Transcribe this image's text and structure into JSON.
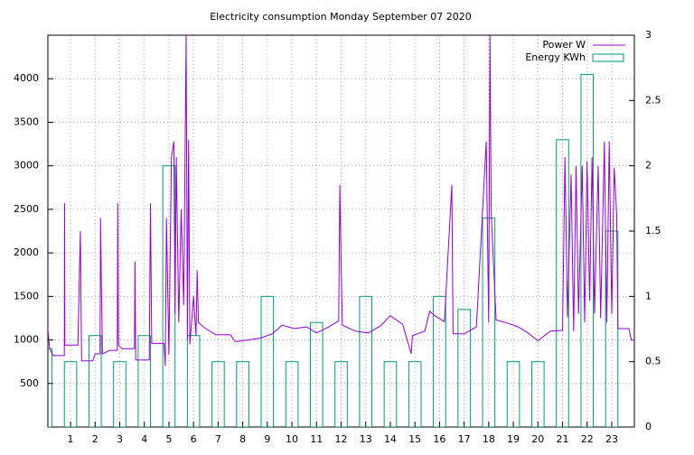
{
  "chart_data": {
    "type": "line-bar",
    "title": "Electricity consumption Monday September 07 2020",
    "xlim": [
      0.08,
      23.92
    ],
    "xticks": [
      1,
      2,
      3,
      4,
      5,
      6,
      7,
      8,
      9,
      10,
      11,
      12,
      13,
      14,
      15,
      16,
      17,
      18,
      19,
      20,
      21,
      22,
      23
    ],
    "ylim": [
      0,
      4500
    ],
    "yticks": [
      500,
      1000,
      1500,
      2000,
      2500,
      3000,
      3500,
      4000
    ],
    "y2lim": [
      0,
      3
    ],
    "y2ticks": [
      0,
      0.5,
      1,
      1.5,
      2,
      2.5,
      3
    ],
    "grid": true,
    "legend": "top-right",
    "series": [
      {
        "name": "Power W",
        "color": "#9400d3",
        "type": "line",
        "x": [
          0.08,
          0.15,
          0.3,
          0.75,
          0.76,
          0.77,
          1.3,
          1.4,
          1.45,
          1.9,
          2.0,
          2.2,
          2.22,
          2.25,
          2.3,
          2.6,
          2.9,
          2.92,
          2.95,
          3.1,
          3.6,
          3.62,
          3.65,
          4.2,
          4.25,
          4.3,
          4.8,
          4.85,
          4.9,
          5.0,
          5.1,
          5.2,
          5.25,
          5.3,
          5.4,
          5.5,
          5.6,
          5.7,
          5.75,
          5.8,
          5.85,
          6.0,
          6.1,
          6.15,
          6.2,
          6.5,
          6.9,
          7.5,
          7.7,
          8.2,
          8.7,
          9.2,
          9.6,
          10.1,
          10.6,
          11.0,
          11.5,
          11.9,
          11.95,
          12.0,
          12.05,
          12.6,
          13.1,
          13.6,
          14.0,
          14.5,
          14.85,
          14.9,
          15.4,
          15.6,
          15.8,
          16.2,
          16.5,
          16.55,
          17.0,
          17.5,
          17.9,
          18.0,
          18.05,
          18.1,
          18.3,
          18.8,
          19.2,
          19.6,
          20.0,
          20.5,
          21.0,
          21.1,
          21.2,
          21.35,
          21.45,
          21.55,
          21.65,
          21.8,
          21.9,
          22.0,
          22.1,
          22.2,
          22.3,
          22.45,
          22.55,
          22.7,
          22.8,
          22.9,
          23.0,
          23.1,
          23.2,
          23.25,
          23.7,
          23.8,
          23.92
        ],
        "values": [
          1130,
          900,
          820,
          820,
          2570,
          940,
          940,
          2250,
          760,
          760,
          840,
          840,
          2400,
          1700,
          840,
          880,
          880,
          2570,
          940,
          900,
          900,
          1900,
          770,
          770,
          2570,
          960,
          960,
          700,
          2400,
          830,
          3100,
          3280,
          1300,
          3100,
          1200,
          2500,
          1400,
          4500,
          1000,
          3300,
          950,
          1500,
          1050,
          1800,
          1200,
          1130,
          1060,
          1060,
          980,
          1000,
          1020,
          1070,
          1170,
          1130,
          1150,
          1080,
          1150,
          1220,
          2780,
          1890,
          1170,
          1100,
          1080,
          1160,
          1280,
          1180,
          840,
          1050,
          1100,
          1330,
          1280,
          1210,
          2780,
          1070,
          1070,
          1150,
          3280,
          1200,
          4500,
          2460,
          1230,
          1190,
          1150,
          1080,
          990,
          1100,
          1110,
          3100,
          1260,
          2900,
          1100,
          3000,
          1300,
          3000,
          1200,
          3050,
          1450,
          3100,
          1300,
          3000,
          1250,
          3280,
          1200,
          3280,
          1300,
          2980,
          2450,
          1130,
          1130,
          1000,
          1000
        ]
      },
      {
        "name": "Energy KWh",
        "color": "#009e73",
        "type": "bar",
        "axis": "y2",
        "x": [
          0,
          1,
          2,
          3,
          4,
          5,
          6,
          7,
          8,
          9,
          10,
          11,
          12,
          13,
          14,
          15,
          16,
          17,
          18,
          19,
          20,
          21,
          22,
          23
        ],
        "values": [
          0.6,
          0.5,
          0.7,
          0.5,
          0.7,
          2.0,
          0.7,
          0.5,
          0.5,
          1.0,
          0.5,
          0.8,
          0.5,
          1.0,
          0.5,
          0.5,
          1.0,
          0.9,
          1.6,
          0.5,
          0.5,
          2.2,
          2.7,
          1.5
        ]
      }
    ]
  }
}
